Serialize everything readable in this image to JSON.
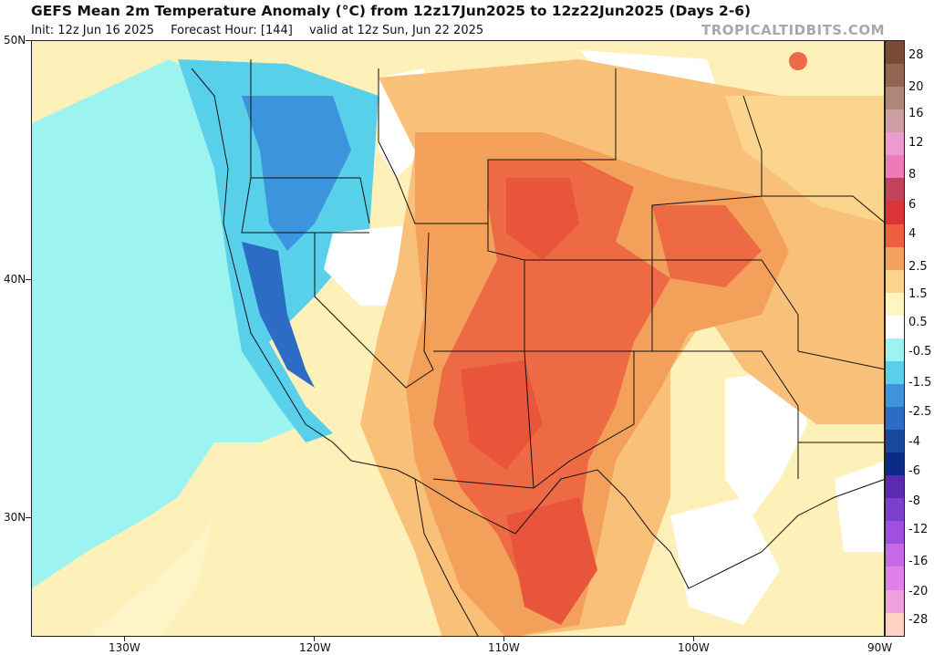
{
  "title": "GEFS Mean 2m Temperature Anomaly (°C) from 12z17Jun2025 to 12z22Jun2025 (Days 2-6)",
  "subtitle": {
    "init": "Init: 12z Jun 16 2025",
    "forecast_hour": "Forecast Hour: [144]",
    "valid": "valid at 12z Sun, Jun 22 2025"
  },
  "brand": "TROPICALTIDBITS.COM",
  "latitude_labels": [
    "50N",
    "40N",
    "30N"
  ],
  "longitude_labels": [
    "130W",
    "120W",
    "110W",
    "100W",
    "90W"
  ],
  "colorbar": {
    "labels": [
      "28",
      "20",
      "16",
      "12",
      "8",
      "6",
      "4",
      "2.5",
      "1.5",
      "0.5",
      "-0.5",
      "-1.5",
      "-2.5",
      "-4",
      "-6",
      "-8",
      "-12",
      "-16",
      "-20",
      "-28"
    ],
    "colors": [
      "#7a4a35",
      "#936553",
      "#b0857a",
      "#cc9ea2",
      "#ec9ad0",
      "#f07ab8",
      "#c4435c",
      "#d9343a",
      "#ee5f3f",
      "#f3a05a",
      "#fbd48d",
      "#fff5c3",
      "#ffffff",
      "#9df3f0",
      "#58d0ea",
      "#3c95dc",
      "#2c6cc4",
      "#1847a0",
      "#0c2b88",
      "#5a2ab0",
      "#7c3fd0",
      "#a050e0",
      "#c86ae8",
      "#e080e8",
      "#f0a0e0",
      "#ffd3c4"
    ]
  },
  "icons": [
    "map-background"
  ]
}
